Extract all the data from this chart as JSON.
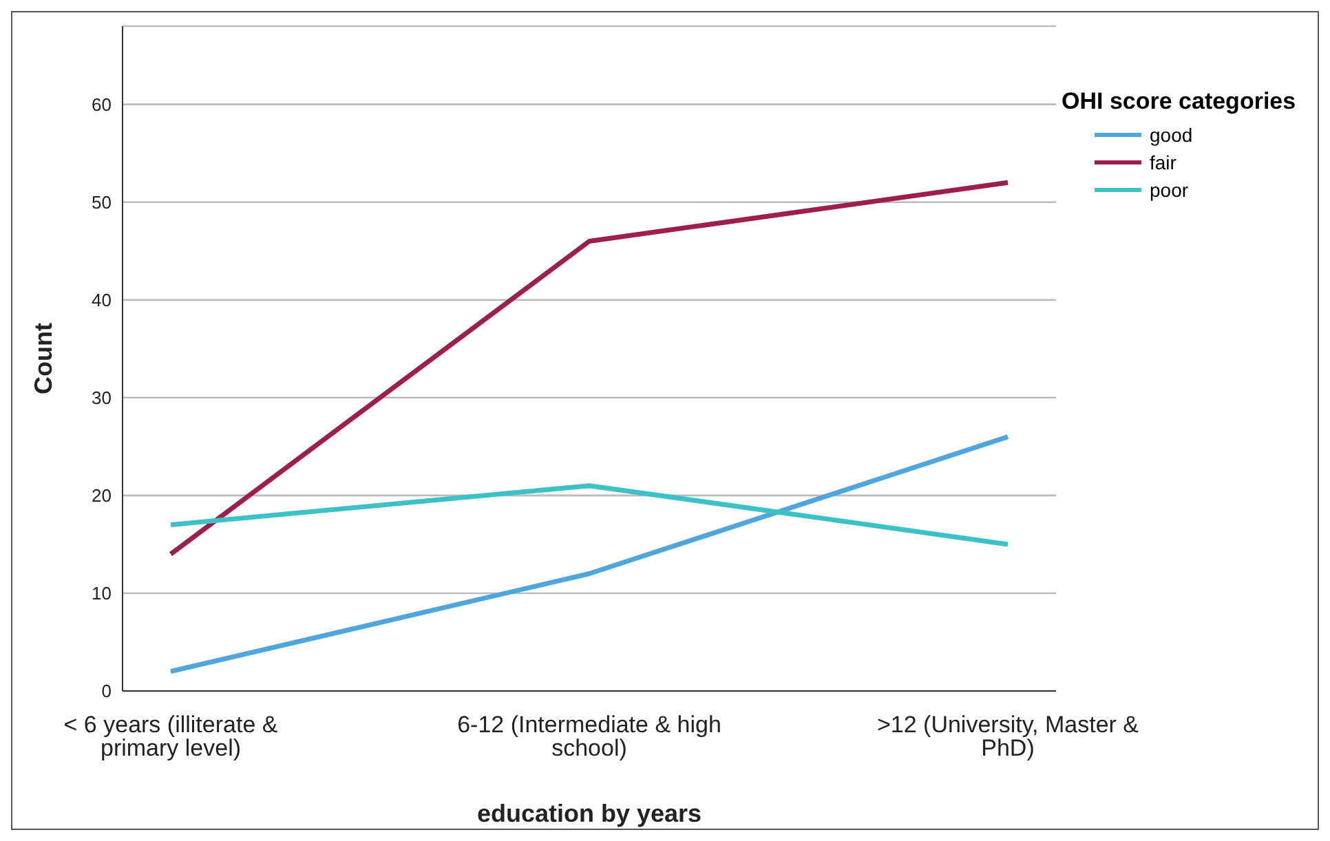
{
  "chart_data": {
    "type": "line",
    "xlabel": "education by years",
    "ylabel": "Count",
    "legend_title": "OHI score categories",
    "categories": [
      "< 6 years (illiterate & primary level)",
      "6-12 (Intermediate & high school)",
      ">12 (University, Master & PhD)"
    ],
    "series": [
      {
        "name": "good",
        "color": "#4ea6dc",
        "values": [
          2,
          12,
          26
        ]
      },
      {
        "name": "fair",
        "color": "#9e1f4e",
        "values": [
          14,
          46,
          52
        ]
      },
      {
        "name": "poor",
        "color": "#3cc2c4",
        "values": [
          17,
          21,
          15
        ]
      }
    ],
    "ylim": [
      0,
      68
    ],
    "yticks": [
      0,
      10,
      20,
      30,
      40,
      50,
      60
    ],
    "grid": "y",
    "legend": "top right",
    "marker": "none",
    "line_style": "solid"
  }
}
